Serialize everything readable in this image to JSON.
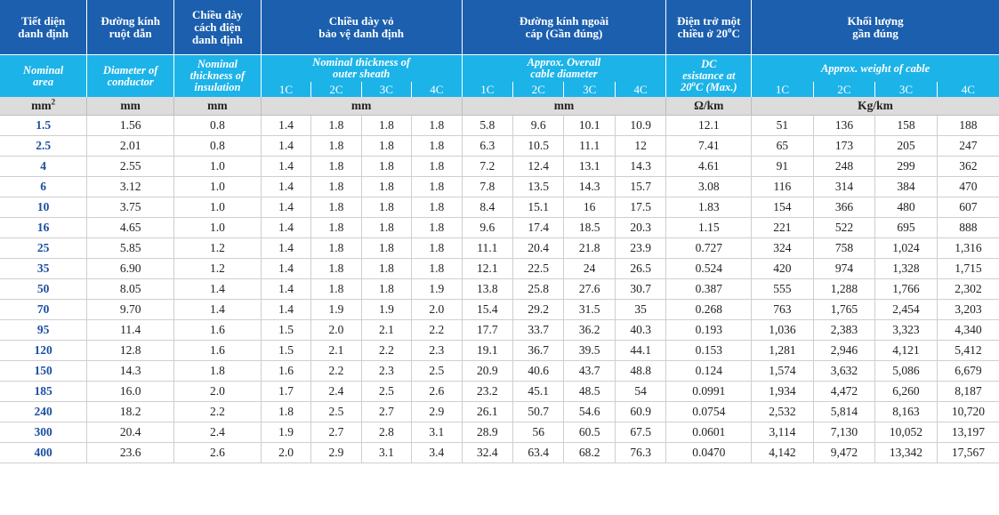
{
  "header_vn": {
    "area": "Tiết diện\ndanh định",
    "conductor": "Đường kính\nruột dẫn",
    "insulation": "Chiều dày\ncách điện\ndanh định",
    "sheath": "Chiều dày vỏ\nbảo vệ danh định",
    "diameter": "Đường kính ngoài\ncáp (Gần đúng)",
    "resistance_prefix": "Điện trở một\nchiều ở 20",
    "resistance_deg": "o",
    "resistance_suffix": "C",
    "weight": "Khối lượng\ngần đúng"
  },
  "header_en": {
    "area": "Nominal\narea",
    "conductor": "Diameter of\nconductor",
    "insulation": "Nominal\nthickness of\ninsulation",
    "sheath": "Nominal thickness of\nouter sheath",
    "diameter": "Approx. Overall\ncable diameter",
    "resistance_a": "DC\nesistance at\n20",
    "resistance_deg": "o",
    "resistance_b": "C (Max.)",
    "weight": "Approx. weight of cable"
  },
  "cores": [
    "1C",
    "2C",
    "3C",
    "4C"
  ],
  "units": {
    "area": "mm",
    "area_sup": "2",
    "conductor": "mm",
    "insulation": "mm",
    "sheath": "mm",
    "diameter": "mm",
    "resistance": "Ω/km",
    "weight": "Kg/km"
  },
  "rows": [
    [
      "1.5",
      "1.56",
      "0.8",
      "1.4",
      "1.8",
      "1.8",
      "1.8",
      "5.8",
      "9.6",
      "10.1",
      "10.9",
      "12.1",
      "51",
      "136",
      "158",
      "188"
    ],
    [
      "2.5",
      "2.01",
      "0.8",
      "1.4",
      "1.8",
      "1.8",
      "1.8",
      "6.3",
      "10.5",
      "11.1",
      "12",
      "7.41",
      "65",
      "173",
      "205",
      "247"
    ],
    [
      "4",
      "2.55",
      "1.0",
      "1.4",
      "1.8",
      "1.8",
      "1.8",
      "7.2",
      "12.4",
      "13.1",
      "14.3",
      "4.61",
      "91",
      "248",
      "299",
      "362"
    ],
    [
      "6",
      "3.12",
      "1.0",
      "1.4",
      "1.8",
      "1.8",
      "1.8",
      "7.8",
      "13.5",
      "14.3",
      "15.7",
      "3.08",
      "116",
      "314",
      "384",
      "470"
    ],
    [
      "10",
      "3.75",
      "1.0",
      "1.4",
      "1.8",
      "1.8",
      "1.8",
      "8.4",
      "15.1",
      "16",
      "17.5",
      "1.83",
      "154",
      "366",
      "480",
      "607"
    ],
    [
      "16",
      "4.65",
      "1.0",
      "1.4",
      "1.8",
      "1.8",
      "1.8",
      "9.6",
      "17.4",
      "18.5",
      "20.3",
      "1.15",
      "221",
      "522",
      "695",
      "888"
    ],
    [
      "25",
      "5.85",
      "1.2",
      "1.4",
      "1.8",
      "1.8",
      "1.8",
      "11.1",
      "20.4",
      "21.8",
      "23.9",
      "0.727",
      "324",
      "758",
      "1,024",
      "1,316"
    ],
    [
      "35",
      "6.90",
      "1.2",
      "1.4",
      "1.8",
      "1.8",
      "1.8",
      "12.1",
      "22.5",
      "24",
      "26.5",
      "0.524",
      "420",
      "974",
      "1,328",
      "1,715"
    ],
    [
      "50",
      "8.05",
      "1.4",
      "1.4",
      "1.8",
      "1.8",
      "1.9",
      "13.8",
      "25.8",
      "27.6",
      "30.7",
      "0.387",
      "555",
      "1,288",
      "1,766",
      "2,302"
    ],
    [
      "70",
      "9.70",
      "1.4",
      "1.4",
      "1.9",
      "1.9",
      "2.0",
      "15.4",
      "29.2",
      "31.5",
      "35",
      "0.268",
      "763",
      "1,765",
      "2,454",
      "3,203"
    ],
    [
      "95",
      "11.4",
      "1.6",
      "1.5",
      "2.0",
      "2.1",
      "2.2",
      "17.7",
      "33.7",
      "36.2",
      "40.3",
      "0.193",
      "1,036",
      "2,383",
      "3,323",
      "4,340"
    ],
    [
      "120",
      "12.8",
      "1.6",
      "1.5",
      "2.1",
      "2.2",
      "2.3",
      "19.1",
      "36.7",
      "39.5",
      "44.1",
      "0.153",
      "1,281",
      "2,946",
      "4,121",
      "5,412"
    ],
    [
      "150",
      "14.3",
      "1.8",
      "1.6",
      "2.2",
      "2.3",
      "2.5",
      "20.9",
      "40.6",
      "43.7",
      "48.8",
      "0.124",
      "1,574",
      "3,632",
      "5,086",
      "6,679"
    ],
    [
      "185",
      "16.0",
      "2.0",
      "1.7",
      "2.4",
      "2.5",
      "2.6",
      "23.2",
      "45.1",
      "48.5",
      "54",
      "0.0991",
      "1,934",
      "4,472",
      "6,260",
      "8,187"
    ],
    [
      "240",
      "18.2",
      "2.2",
      "1.8",
      "2.5",
      "2.7",
      "2.9",
      "26.1",
      "50.7",
      "54.6",
      "60.9",
      "0.0754",
      "2,532",
      "5,814",
      "8,163",
      "10,720"
    ],
    [
      "300",
      "20.4",
      "2.4",
      "1.9",
      "2.7",
      "2.8",
      "3.1",
      "28.9",
      "56",
      "60.5",
      "67.5",
      "0.0601",
      "3,114",
      "7,130",
      "10,052",
      "13,197"
    ],
    [
      "400",
      "23.6",
      "2.6",
      "2.0",
      "2.9",
      "3.1",
      "3.4",
      "32.4",
      "63.4",
      "68.2",
      "76.3",
      "0.0470",
      "4,142",
      "9,472",
      "13,342",
      "17,567"
    ]
  ]
}
